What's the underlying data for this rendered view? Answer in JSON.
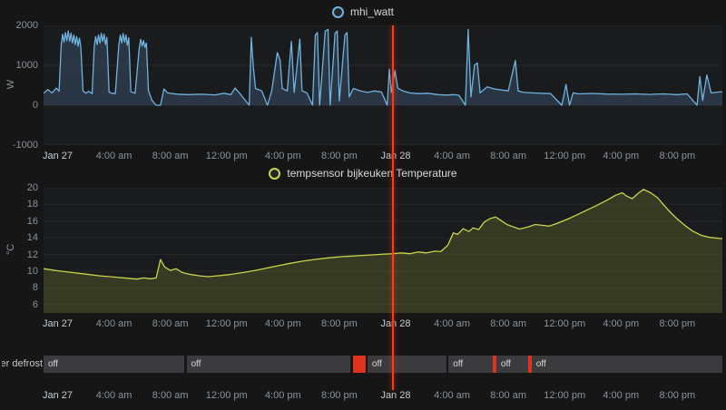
{
  "annotation": {
    "t": 24.8,
    "color": "#ff3b14"
  },
  "timeline": {
    "states_off_label": "off"
  },
  "chart_data": {
    "x_range": [
      0,
      48.2
    ],
    "x_ticks": [
      {
        "t": 1,
        "label": "Jan 27"
      },
      {
        "t": 5,
        "label": "4:00 am"
      },
      {
        "t": 9,
        "label": "8:00 am"
      },
      {
        "t": 13,
        "label": "12:00 pm"
      },
      {
        "t": 17,
        "label": "4:00 pm"
      },
      {
        "t": 21,
        "label": "8:00 pm"
      },
      {
        "t": 25,
        "label": "Jan 28"
      },
      {
        "t": 29,
        "label": "4:00 am"
      },
      {
        "t": 33,
        "label": "8:00 am"
      },
      {
        "t": 37,
        "label": "12:00 pm"
      },
      {
        "t": 41,
        "label": "4:00 pm"
      },
      {
        "t": 45,
        "label": "8:00 pm"
      }
    ],
    "charts": [
      {
        "type": "line",
        "name": "mhi_watt",
        "unit": "W",
        "color": "#6fb3e0",
        "fill": "rgba(80,120,160,0.30)",
        "y_range": [
          -1000,
          2000
        ],
        "y_ticks": [
          2000,
          1000,
          0,
          -1000
        ],
        "legend_position": "top-center",
        "grid": "horizontal",
        "points": [
          [
            0,
            300
          ],
          [
            0.3,
            390
          ],
          [
            0.6,
            310
          ],
          [
            0.9,
            430
          ],
          [
            1.1,
            350
          ],
          [
            1.25,
            1500
          ],
          [
            1.35,
            1780
          ],
          [
            1.45,
            1580
          ],
          [
            1.55,
            1820
          ],
          [
            1.65,
            1620
          ],
          [
            1.75,
            1860
          ],
          [
            1.85,
            1600
          ],
          [
            1.95,
            1810
          ],
          [
            2.05,
            1560
          ],
          [
            2.15,
            1760
          ],
          [
            2.25,
            1520
          ],
          [
            2.35,
            1720
          ],
          [
            2.45,
            1480
          ],
          [
            2.55,
            1680
          ],
          [
            2.65,
            1450
          ],
          [
            2.8,
            360
          ],
          [
            3.0,
            300
          ],
          [
            3.2,
            350
          ],
          [
            3.45,
            290
          ],
          [
            3.6,
            1480
          ],
          [
            3.7,
            1720
          ],
          [
            3.8,
            1520
          ],
          [
            3.9,
            1760
          ],
          [
            4.0,
            1560
          ],
          [
            4.1,
            1800
          ],
          [
            4.2,
            1600
          ],
          [
            4.3,
            1780
          ],
          [
            4.4,
            1520
          ],
          [
            4.5,
            1700
          ],
          [
            4.65,
            330
          ],
          [
            4.85,
            300
          ],
          [
            5.1,
            290
          ],
          [
            5.35,
            1520
          ],
          [
            5.45,
            1760
          ],
          [
            5.55,
            1560
          ],
          [
            5.65,
            1800
          ],
          [
            5.75,
            1580
          ],
          [
            5.85,
            1760
          ],
          [
            5.95,
            1500
          ],
          [
            6.05,
            1690
          ],
          [
            6.2,
            340
          ],
          [
            6.5,
            300
          ],
          [
            6.8,
            1450
          ],
          [
            6.9,
            1650
          ],
          [
            7.0,
            1480
          ],
          [
            7.1,
            1620
          ],
          [
            7.2,
            1450
          ],
          [
            7.3,
            1560
          ],
          [
            7.45,
            360
          ],
          [
            7.7,
            120
          ],
          [
            8.0,
            0
          ],
          [
            8.3,
            0
          ],
          [
            8.55,
            410
          ],
          [
            8.8,
            310
          ],
          [
            9.4,
            280
          ],
          [
            10.2,
            265
          ],
          [
            11.2,
            275
          ],
          [
            12.2,
            260
          ],
          [
            12.8,
            300
          ],
          [
            13.3,
            265
          ],
          [
            13.6,
            430
          ],
          [
            13.9,
            310
          ],
          [
            14.6,
            0
          ],
          [
            14.75,
            1700
          ],
          [
            14.9,
            950
          ],
          [
            15.05,
            420
          ],
          [
            15.5,
            360
          ],
          [
            15.9,
            0
          ],
          [
            16.2,
            360
          ],
          [
            16.6,
            1320
          ],
          [
            16.8,
            1120
          ],
          [
            16.95,
            420
          ],
          [
            17.3,
            360
          ],
          [
            17.6,
            1600
          ],
          [
            17.8,
            320
          ],
          [
            18.2,
            1660
          ],
          [
            18.35,
            360
          ],
          [
            18.7,
            310
          ],
          [
            19.1,
            0
          ],
          [
            19.3,
            1760
          ],
          [
            19.45,
            1820
          ],
          [
            19.6,
            0
          ],
          [
            20.0,
            1860
          ],
          [
            20.2,
            1900
          ],
          [
            20.35,
            0
          ],
          [
            20.7,
            1800
          ],
          [
            20.85,
            1860
          ],
          [
            21.0,
            110
          ],
          [
            21.4,
            1760
          ],
          [
            21.55,
            1820
          ],
          [
            21.7,
            210
          ],
          [
            22.0,
            420
          ],
          [
            22.5,
            360
          ],
          [
            23.0,
            320
          ],
          [
            23.5,
            360
          ],
          [
            24.0,
            330
          ],
          [
            24.4,
            0
          ],
          [
            24.55,
            900
          ],
          [
            24.7,
            320
          ],
          [
            24.95,
            870
          ],
          [
            25.15,
            430
          ],
          [
            25.5,
            360
          ],
          [
            26.0,
            310
          ],
          [
            26.6,
            290
          ],
          [
            27.3,
            300
          ],
          [
            28.0,
            265
          ],
          [
            28.6,
            255
          ],
          [
            29.1,
            265
          ],
          [
            29.5,
            250
          ],
          [
            29.95,
            0
          ],
          [
            30.15,
            1900
          ],
          [
            30.35,
            210
          ],
          [
            30.6,
            1010
          ],
          [
            30.8,
            1060
          ],
          [
            31.0,
            310
          ],
          [
            31.5,
            460
          ],
          [
            32.0,
            410
          ],
          [
            32.5,
            385
          ],
          [
            33.0,
            360
          ],
          [
            33.5,
            1120
          ],
          [
            33.7,
            360
          ],
          [
            34.1,
            320
          ],
          [
            35.0,
            305
          ],
          [
            36.0,
            290
          ],
          [
            36.8,
            0
          ],
          [
            37.1,
            520
          ],
          [
            37.35,
            0
          ],
          [
            37.6,
            310
          ],
          [
            38.0,
            285
          ],
          [
            39.0,
            295
          ],
          [
            40.0,
            280
          ],
          [
            41.0,
            275
          ],
          [
            42.0,
            285
          ],
          [
            43.0,
            270
          ],
          [
            44.0,
            285
          ],
          [
            45.0,
            265
          ],
          [
            45.7,
            285
          ],
          [
            46.4,
            0
          ],
          [
            46.6,
            720
          ],
          [
            46.8,
            120
          ],
          [
            47.1,
            760
          ],
          [
            47.4,
            310
          ],
          [
            48.2,
            340
          ]
        ]
      },
      {
        "type": "line",
        "name": "tempsensor bijkeuken Temperature",
        "unit": "°C",
        "color": "#cbd44a",
        "fill": "rgba(140,150,55,0.25)",
        "y_range": [
          5,
          20
        ],
        "y_ticks": [
          20,
          18,
          16,
          14,
          12,
          10,
          8,
          6
        ],
        "legend_position": "top-center",
        "grid": "horizontal",
        "points": [
          [
            0,
            10.3
          ],
          [
            1,
            10.05
          ],
          [
            2,
            9.85
          ],
          [
            3,
            9.65
          ],
          [
            4,
            9.45
          ],
          [
            5,
            9.3
          ],
          [
            6,
            9.15
          ],
          [
            6.6,
            9.05
          ],
          [
            7.1,
            9.2
          ],
          [
            7.6,
            9.1
          ],
          [
            8.0,
            9.2
          ],
          [
            8.3,
            11.4
          ],
          [
            8.6,
            10.5
          ],
          [
            9.0,
            10.1
          ],
          [
            9.4,
            10.3
          ],
          [
            9.9,
            9.8
          ],
          [
            10.5,
            9.6
          ],
          [
            11.1,
            9.45
          ],
          [
            11.7,
            9.35
          ],
          [
            12.3,
            9.45
          ],
          [
            13.2,
            9.6
          ],
          [
            14.2,
            9.85
          ],
          [
            15.2,
            10.15
          ],
          [
            16.2,
            10.5
          ],
          [
            17.2,
            10.85
          ],
          [
            18.2,
            11.15
          ],
          [
            19.2,
            11.4
          ],
          [
            20.2,
            11.6
          ],
          [
            21.2,
            11.75
          ],
          [
            22.2,
            11.85
          ],
          [
            23.2,
            11.95
          ],
          [
            24.2,
            12.05
          ],
          [
            24.8,
            12.1
          ],
          [
            25.4,
            12.2
          ],
          [
            26.0,
            12.1
          ],
          [
            26.6,
            12.3
          ],
          [
            27.2,
            12.2
          ],
          [
            27.8,
            12.4
          ],
          [
            28.2,
            12.35
          ],
          [
            28.7,
            13.1
          ],
          [
            29.1,
            14.6
          ],
          [
            29.4,
            14.4
          ],
          [
            29.8,
            15.1
          ],
          [
            30.2,
            14.75
          ],
          [
            30.5,
            15.2
          ],
          [
            30.9,
            15.0
          ],
          [
            31.3,
            15.9
          ],
          [
            31.7,
            16.3
          ],
          [
            32.1,
            16.5
          ],
          [
            32.5,
            16.05
          ],
          [
            32.9,
            15.6
          ],
          [
            33.3,
            15.35
          ],
          [
            33.8,
            15.05
          ],
          [
            34.4,
            15.3
          ],
          [
            34.9,
            15.6
          ],
          [
            35.4,
            15.5
          ],
          [
            35.9,
            15.4
          ],
          [
            36.4,
            15.7
          ],
          [
            37.3,
            16.3
          ],
          [
            38.3,
            17.1
          ],
          [
            39.3,
            17.9
          ],
          [
            40.1,
            18.6
          ],
          [
            40.6,
            19.1
          ],
          [
            41.1,
            19.4
          ],
          [
            41.4,
            19.0
          ],
          [
            41.8,
            18.7
          ],
          [
            42.2,
            19.3
          ],
          [
            42.6,
            19.8
          ],
          [
            43.1,
            19.4
          ],
          [
            43.6,
            18.8
          ],
          [
            44.1,
            17.8
          ],
          [
            44.6,
            16.9
          ],
          [
            45.1,
            16.1
          ],
          [
            45.6,
            15.4
          ],
          [
            46.1,
            14.8
          ],
          [
            46.7,
            14.3
          ],
          [
            47.3,
            14.05
          ],
          [
            48.2,
            13.9
          ]
        ]
      },
      {
        "type": "state-timeline",
        "name": "er defrost",
        "states": {
          "off": {
            "color": "#3b3b3d",
            "label": "off"
          },
          "defrost": {
            "color": "#e0301e",
            "label": ""
          },
          "none": {
            "color": "transparent",
            "label": ""
          }
        },
        "segments": [
          {
            "start": 0,
            "end": 10.0,
            "state": "off"
          },
          {
            "start": 10.0,
            "end": 10.15,
            "state": "none"
          },
          {
            "start": 10.15,
            "end": 21.8,
            "state": "off"
          },
          {
            "start": 21.8,
            "end": 21.95,
            "state": "none"
          },
          {
            "start": 21.95,
            "end": 22.1,
            "state": "defrost"
          },
          {
            "start": 22.1,
            "end": 22.25,
            "state": "none"
          },
          {
            "start": 22.25,
            "end": 22.4,
            "state": "defrost"
          },
          {
            "start": 22.4,
            "end": 22.55,
            "state": "none"
          },
          {
            "start": 22.55,
            "end": 22.7,
            "state": "defrost"
          },
          {
            "start": 22.7,
            "end": 23.0,
            "state": "none"
          },
          {
            "start": 23.0,
            "end": 28.6,
            "state": "off"
          },
          {
            "start": 28.6,
            "end": 28.75,
            "state": "none"
          },
          {
            "start": 28.75,
            "end": 31.9,
            "state": "off"
          },
          {
            "start": 31.9,
            "end": 32.15,
            "state": "defrost"
          },
          {
            "start": 32.15,
            "end": 34.4,
            "state": "off"
          },
          {
            "start": 34.4,
            "end": 34.65,
            "state": "defrost"
          },
          {
            "start": 34.65,
            "end": 48.2,
            "state": "off"
          }
        ]
      }
    ]
  }
}
